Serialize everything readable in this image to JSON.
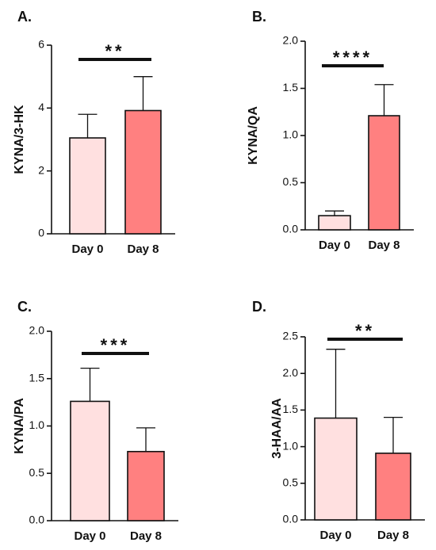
{
  "chart_data": [
    {
      "panel": "A.",
      "type": "bar",
      "categories": [
        "Day 0",
        "Day 8"
      ],
      "values": [
        3.05,
        3.92
      ],
      "errors": [
        0.75,
        1.08
      ],
      "colors": [
        "#ffe0e0",
        "#ff8080"
      ],
      "ylabel": "KYNA/3-HK",
      "ylim": [
        0,
        6
      ],
      "yticks": [
        "0",
        "2",
        "4",
        "6"
      ],
      "yticks_values": [
        0,
        2,
        4,
        6
      ],
      "significance": "**"
    },
    {
      "panel": "B.",
      "type": "bar",
      "categories": [
        "Day 0",
        "Day 8"
      ],
      "values": [
        0.15,
        1.21
      ],
      "errors": [
        0.05,
        0.33
      ],
      "colors": [
        "#ffe0e0",
        "#ff8080"
      ],
      "ylabel": "KYNA/QA",
      "ylim": [
        0,
        2
      ],
      "yticks": [
        "0.0",
        "0.5",
        "1.0",
        "1.5",
        "2.0"
      ],
      "yticks_values": [
        0,
        0.5,
        1.0,
        1.5,
        2.0
      ],
      "significance": "****"
    },
    {
      "panel": "C.",
      "type": "bar",
      "categories": [
        "Day 0",
        "Day 8"
      ],
      "values": [
        1.26,
        0.73
      ],
      "errors": [
        0.35,
        0.25
      ],
      "colors": [
        "#ffe0e0",
        "#ff8080"
      ],
      "ylabel": "KYNA/PA",
      "ylim": [
        0,
        2
      ],
      "yticks": [
        "0.0",
        "0.5",
        "1.0",
        "1.5",
        "2.0"
      ],
      "yticks_values": [
        0,
        0.5,
        1.0,
        1.5,
        2.0
      ],
      "significance": "***"
    },
    {
      "panel": "D.",
      "type": "bar",
      "categories": [
        "Day 0",
        "Day 8"
      ],
      "values": [
        1.39,
        0.91
      ],
      "errors": [
        0.94,
        0.49
      ],
      "colors": [
        "#ffe0e0",
        "#ff8080"
      ],
      "ylabel": "3-HAA/AA",
      "ylim": [
        0,
        2.5
      ],
      "yticks": [
        "0.0",
        "0.5",
        "1.0",
        "1.5",
        "2.0",
        "2.5"
      ],
      "yticks_values": [
        0,
        0.5,
        1.0,
        1.5,
        2.0,
        2.5
      ],
      "significance": "**"
    }
  ]
}
